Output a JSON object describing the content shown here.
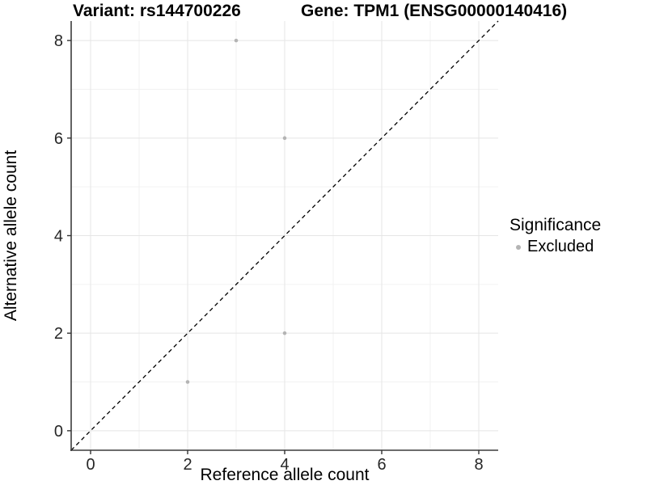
{
  "titles": {
    "variant": "Variant: rs144700226",
    "gene": "Gene: TPM1 (ENSG00000140416)"
  },
  "legend": {
    "title": "Significance",
    "items": [
      {
        "label": "Excluded",
        "color": "#b4b4b4",
        "marker": "circle"
      }
    ]
  },
  "chart_data": {
    "type": "scatter",
    "xlabel": "Reference allele count",
    "ylabel": "Alternative allele count",
    "xlim": [
      -0.4,
      8.4
    ],
    "ylim": [
      -0.4,
      8.4
    ],
    "x_ticks": [
      0,
      2,
      4,
      6,
      8
    ],
    "y_ticks": [
      0,
      2,
      4,
      6,
      8
    ],
    "x_minor_ticks": [
      1,
      3,
      5,
      7
    ],
    "y_minor_ticks": [
      1,
      3,
      5,
      7
    ],
    "grid": true,
    "legend_position": "right",
    "series": [
      {
        "name": "Excluded",
        "color": "#b4b4b4",
        "points": [
          [
            2,
            1
          ],
          [
            3,
            8
          ],
          [
            4,
            2
          ],
          [
            4,
            6
          ]
        ]
      }
    ],
    "reference_line": {
      "style": "dashed",
      "color": "#000000",
      "from": [
        -0.4,
        -0.4
      ],
      "to": [
        8.4,
        8.4
      ]
    }
  },
  "colors": {
    "background": "#ffffff",
    "major_grid": "#e5e5e5",
    "minor_grid": "#f2f2f2",
    "axis_line": "#3c3c3c",
    "tick": "#333333",
    "tick_label": "#262626",
    "axis_title": "#000000"
  }
}
